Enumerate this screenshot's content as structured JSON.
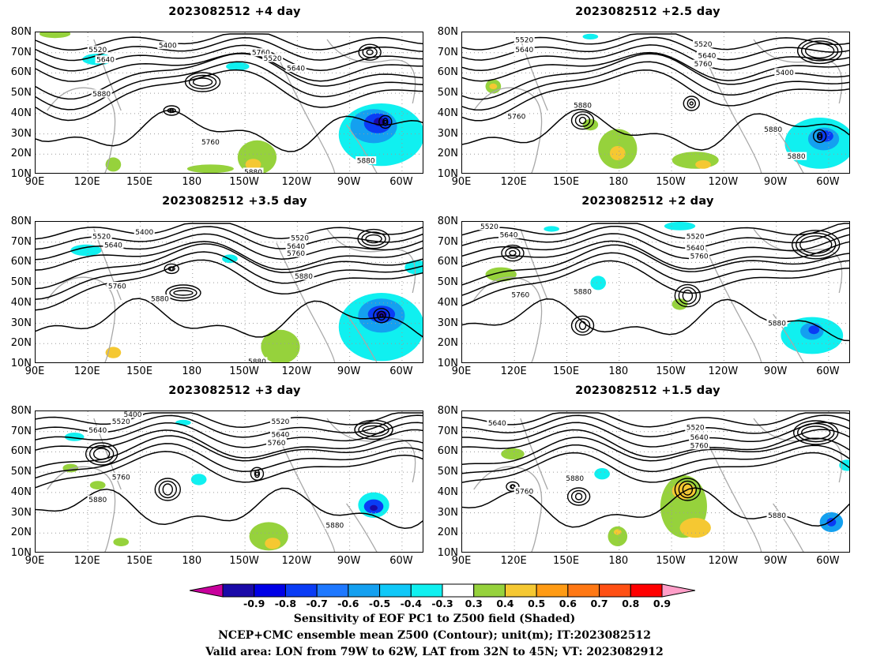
{
  "panels": [
    {
      "title": "2023082512 +4 day",
      "contour_labels": [
        "5400",
        "5520",
        "5640",
        "5760",
        "5520",
        "5640",
        "5760",
        "5880",
        "5880",
        "5880"
      ]
    },
    {
      "title": "2023082512 +2.5 day",
      "contour_labels": [
        "5520",
        "5640",
        "5520",
        "5640",
        "5760",
        "5400",
        "5880",
        "5760",
        "5880",
        "5880"
      ]
    },
    {
      "title": "2023082512 +3.5 day",
      "contour_labels": [
        "5400",
        "5520",
        "5640",
        "5520",
        "5640",
        "5760",
        "5760",
        "5880",
        "5880",
        "5880"
      ]
    },
    {
      "title": "2023082512 +2 day",
      "contour_labels": [
        "5520",
        "5640",
        "5520",
        "5640",
        "5760",
        "5760",
        "5880",
        "5880"
      ]
    },
    {
      "title": "2023082512 +3 day",
      "contour_labels": [
        "5400",
        "5520",
        "5640",
        "5520",
        "5640",
        "5760",
        "5760",
        "5880",
        "5880"
      ]
    },
    {
      "title": "2023082512 +1.5 day",
      "contour_labels": [
        "5640",
        "5520",
        "5640",
        "5760",
        "5880",
        "5760",
        "5880"
      ]
    }
  ],
  "axes": {
    "lat_labels": [
      "80N",
      "70N",
      "60N",
      "50N",
      "40N",
      "30N",
      "20N",
      "10N"
    ],
    "lon_labels": [
      "90E",
      "120E",
      "150E",
      "180",
      "150W",
      "120W",
      "90W",
      "60W"
    ]
  },
  "colorbar": {
    "ticks": [
      "-0.9",
      "-0.8",
      "-0.7",
      "-0.6",
      "-0.5",
      "-0.4",
      "-0.3",
      "0.3",
      "0.4",
      "0.5",
      "0.6",
      "0.7",
      "0.8",
      "0.9"
    ],
    "colors": [
      "#c8009c",
      "#1a0aa8",
      "#0000e6",
      "#0a3cf5",
      "#1e78ff",
      "#14a0f0",
      "#10c8f8",
      "#10f0f0",
      "#ffffff",
      "#96d23c",
      "#f5c832",
      "#ff9b14",
      "#ff7814",
      "#ff5014",
      "#ff0000",
      "#ff9ec8"
    ]
  },
  "caption": {
    "line1": "Sensitivity of EOF PC1 to Z500 field (Shaded)",
    "line2": "NCEP+CMC ensemble mean Z500 (Contour); unit(m); IT:2023082512",
    "line3": "Valid area: LON from 79W to 62W, LAT from 32N to 45N; VT: 2023082912"
  }
}
